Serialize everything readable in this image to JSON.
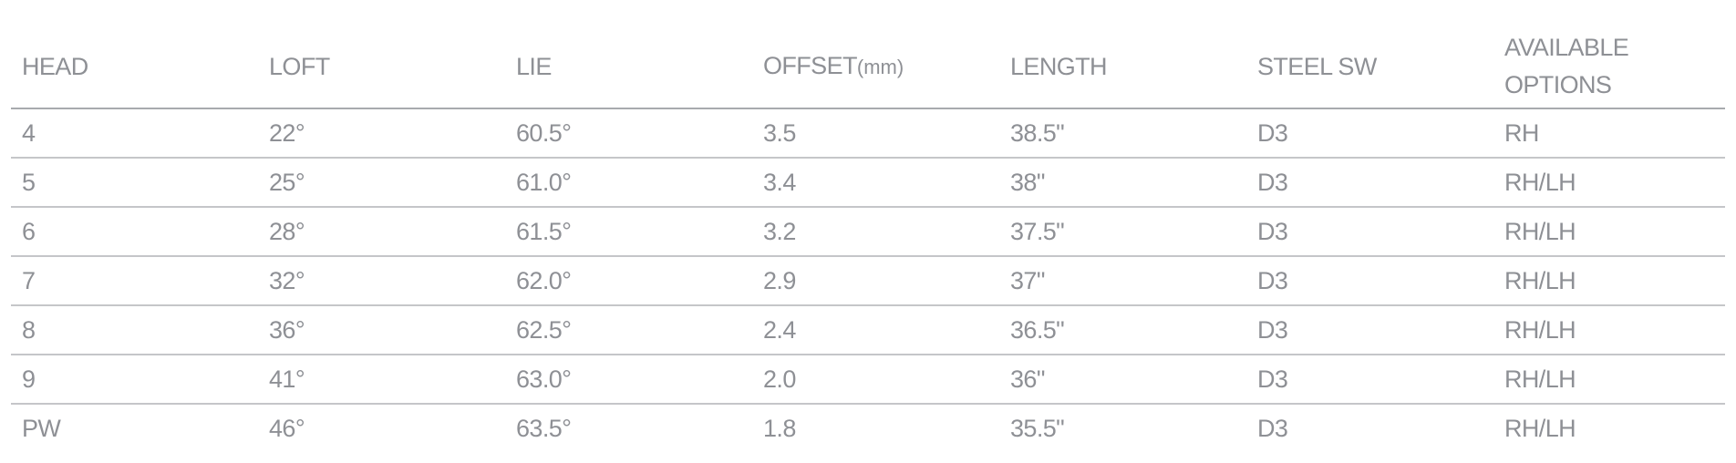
{
  "table": {
    "headers": [
      {
        "label": "HEAD",
        "unit": ""
      },
      {
        "label": "LOFT",
        "unit": ""
      },
      {
        "label": "LIE",
        "unit": ""
      },
      {
        "label": "OFFSET",
        "unit": "(mm)"
      },
      {
        "label": "LENGTH",
        "unit": ""
      },
      {
        "label": "STEEL SW",
        "unit": ""
      },
      {
        "label": "AVAILABLE OPTIONS",
        "unit": ""
      }
    ],
    "rows": [
      [
        "4",
        "22°",
        "60.5°",
        "3.5",
        "38.5\"",
        "D3",
        "RH"
      ],
      [
        "5",
        "25°",
        "61.0°",
        "3.4",
        "38\"",
        "D3",
        "RH/LH"
      ],
      [
        "6",
        "28°",
        "61.5°",
        "3.2",
        "37.5\"",
        "D3",
        "RH/LH"
      ],
      [
        "7",
        "32°",
        "62.0°",
        "2.9",
        "37\"",
        "D3",
        "RH/LH"
      ],
      [
        "8",
        "36°",
        "62.5°",
        "2.4",
        "36.5\"",
        "D3",
        "RH/LH"
      ],
      [
        "9",
        "41°",
        "63.0°",
        "2.0",
        "36\"",
        "D3",
        "RH/LH"
      ],
      [
        "PW",
        "46°",
        "63.5°",
        "1.8",
        "35.5\"",
        "D3",
        "RH/LH"
      ]
    ]
  },
  "colors": {
    "text": "#8e9095",
    "header_rule": "#a8aaae",
    "row_rule": "#c5c6c9",
    "background": "#ffffff"
  }
}
